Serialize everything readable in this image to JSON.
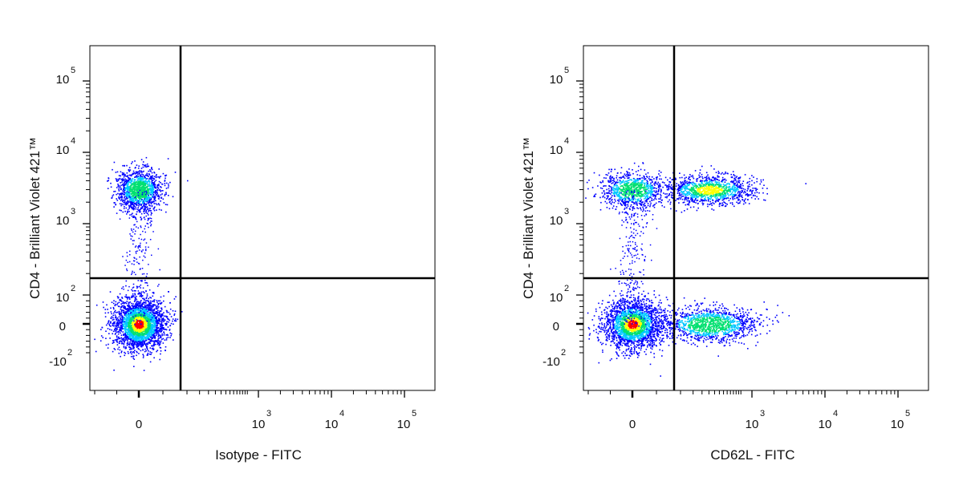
{
  "colors": {
    "background": "#ffffff",
    "axis": "#000000",
    "gate": "#000000",
    "density_low": "#0000ff",
    "density_mid_low": "#00c8ff",
    "density_mid": "#00e070",
    "density_mid_high": "#ffff00",
    "density_high": "#ff0000"
  },
  "chart_data": [
    {
      "type": "scatter",
      "subtype": "flow-cytometry density dot plot",
      "xlabel": "Isotype - FITC",
      "ylabel": "CD4 - Brilliant Violet 421™",
      "x_scale": "biexponential",
      "y_scale": "biexponential",
      "x_ticks": [
        {
          "value": 0,
          "label": "0"
        },
        {
          "value": 1000,
          "base": "10",
          "exp": "3"
        },
        {
          "value": 10000,
          "base": "10",
          "exp": "4"
        },
        {
          "value": 100000,
          "base": "10",
          "exp": "5"
        }
      ],
      "y_ticks": [
        {
          "value": -100,
          "base": "-10",
          "exp": "2"
        },
        {
          "value": 0,
          "label": "0"
        },
        {
          "value": 100,
          "base": "10",
          "exp": "2"
        },
        {
          "value": 1000,
          "base": "10",
          "exp": "3"
        },
        {
          "value": 10000,
          "base": "10",
          "exp": "4"
        },
        {
          "value": 100000,
          "base": "10",
          "exp": "5"
        }
      ],
      "gates": {
        "x": 80,
        "y": 150
      },
      "populations": [
        {
          "name": "CD4- isotype-negative",
          "x_center": 0,
          "y_center": 0,
          "relative_density": "high"
        },
        {
          "name": "CD4+ isotype-negative",
          "x_center": 0,
          "y_center": 3000,
          "relative_density": "medium"
        }
      ]
    },
    {
      "type": "scatter",
      "subtype": "flow-cytometry density dot plot",
      "xlabel": "CD62L - FITC",
      "ylabel": "CD4 - Brilliant Violet 421™",
      "x_scale": "biexponential",
      "y_scale": "biexponential",
      "x_ticks": [
        {
          "value": 0,
          "label": "0"
        },
        {
          "value": 1000,
          "base": "10",
          "exp": "3"
        },
        {
          "value": 10000,
          "base": "10",
          "exp": "4"
        },
        {
          "value": 100000,
          "base": "10",
          "exp": "5"
        }
      ],
      "y_ticks": [
        {
          "value": -100,
          "base": "-10",
          "exp": "2"
        },
        {
          "value": 0,
          "label": "0"
        },
        {
          "value": 100,
          "base": "10",
          "exp": "2"
        },
        {
          "value": 1000,
          "base": "10",
          "exp": "3"
        },
        {
          "value": 10000,
          "base": "10",
          "exp": "4"
        },
        {
          "value": 100000,
          "base": "10",
          "exp": "5"
        }
      ],
      "gates": {
        "x": 80,
        "y": 150
      },
      "populations": [
        {
          "name": "CD4- CD62L-",
          "x_center": 0,
          "y_center": 0,
          "relative_density": "high"
        },
        {
          "name": "CD4- CD62L+",
          "x_center": 250,
          "y_center": 0,
          "relative_density": "medium"
        },
        {
          "name": "CD4+ CD62L-",
          "x_center": 0,
          "y_center": 3000,
          "relative_density": "medium"
        },
        {
          "name": "CD4+ CD62L+",
          "x_center": 250,
          "y_center": 3000,
          "relative_density": "medium-high"
        }
      ]
    }
  ]
}
